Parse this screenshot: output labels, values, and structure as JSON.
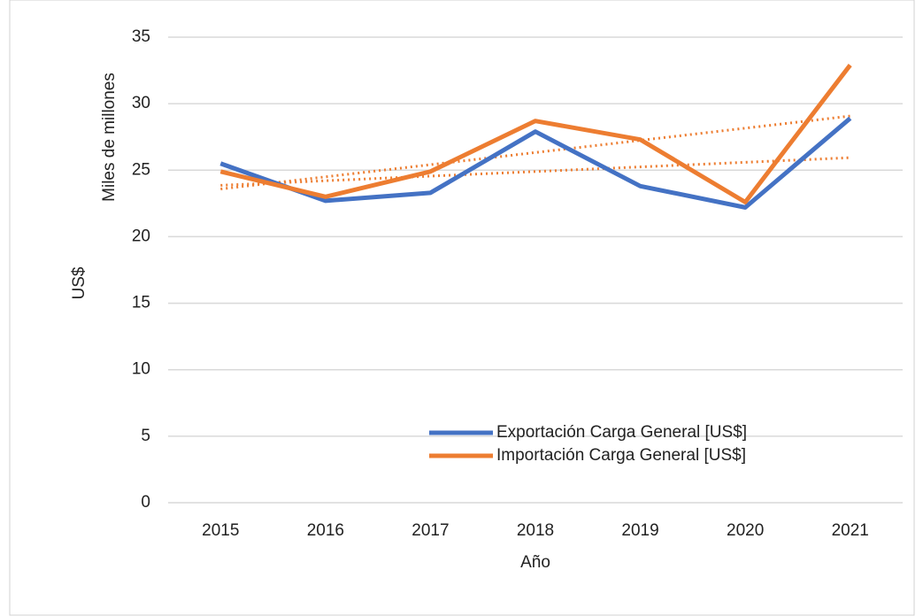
{
  "chart_data": {
    "type": "line",
    "xlabel": "Año",
    "ylabel": [
      "Miles de millones",
      "US$"
    ],
    "categories": [
      "2015",
      "2016",
      "2017",
      "2018",
      "2019",
      "2020",
      "2021"
    ],
    "series": [
      {
        "name": "Exportación Carga General [US$]",
        "color": "#4472c4",
        "values": [
          25.5,
          22.7,
          23.3,
          27.9,
          23.8,
          22.2,
          28.9
        ]
      },
      {
        "name": "Importación Carga General [US$]",
        "color": "#ed7d31",
        "values": [
          24.9,
          23.0,
          24.9,
          28.7,
          27.3,
          22.6,
          32.9
        ]
      }
    ],
    "trendline": true,
    "trend_color": "#ed7d31",
    "ylim": [
      0,
      35
    ],
    "yticks": [
      0,
      5,
      10,
      15,
      20,
      25,
      30,
      35
    ],
    "grid": true
  }
}
